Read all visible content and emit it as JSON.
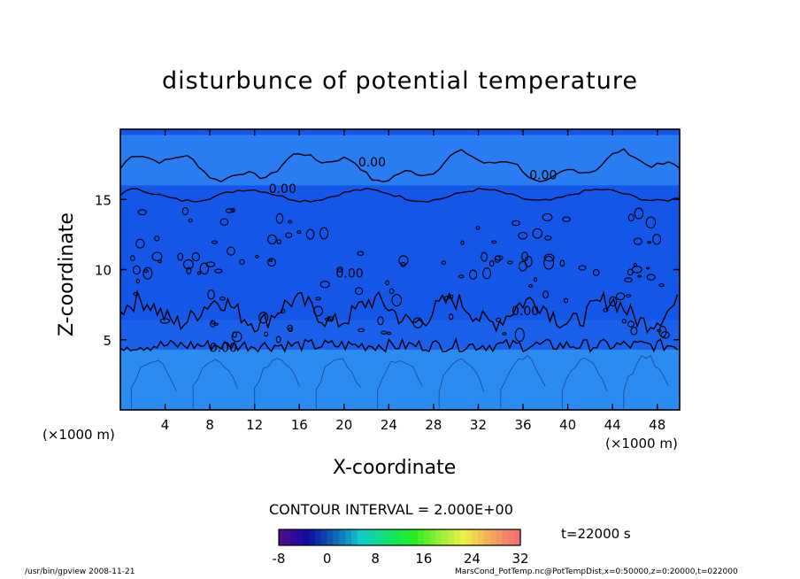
{
  "chart_data": {
    "type": "heatmap",
    "title": "disturbunce of potential temperature",
    "xlabel": "X-coordinate",
    "ylabel": "Z-coordinate",
    "x_unit": "(×1000 m)",
    "xlim": [
      0,
      50
    ],
    "ylim": [
      0,
      20
    ],
    "x_ticks": [
      "4",
      "8",
      "12",
      "16",
      "20",
      "24",
      "28",
      "32",
      "36",
      "40",
      "44",
      "48"
    ],
    "y_ticks": [
      "5",
      "10",
      "15"
    ],
    "contour_labels": [
      "0.00",
      "0.00",
      "0.00",
      "0.00",
      "0.00",
      "0.00"
    ],
    "contour_interval": "CONTOUR INTERVAL = 2.000E+00",
    "time": "t=22000 s",
    "colorbar": {
      "range": [
        -8,
        32
      ],
      "ticks": [
        "-8",
        "0",
        "8",
        "16",
        "24",
        "32"
      ],
      "colormap": "rainbow"
    },
    "layers": [
      {
        "z_range": [
          0,
          4.3
        ],
        "level": "0 to 2",
        "color": "#2a8cf0"
      },
      {
        "z_range": [
          4.3,
          19.6
        ],
        "level": "-2 to 0",
        "color": "#1456e8"
      },
      {
        "z_range": [
          16,
          19.6
        ],
        "level": "0 to 2",
        "color": "#2a7cf2"
      }
    ]
  },
  "footer": {
    "left": "/usr/bin/gpview   2008-11-21",
    "right": "MarsCond_PotTemp.nc@PotTempDist,x=0:50000,z=0:20000,t=022000"
  }
}
